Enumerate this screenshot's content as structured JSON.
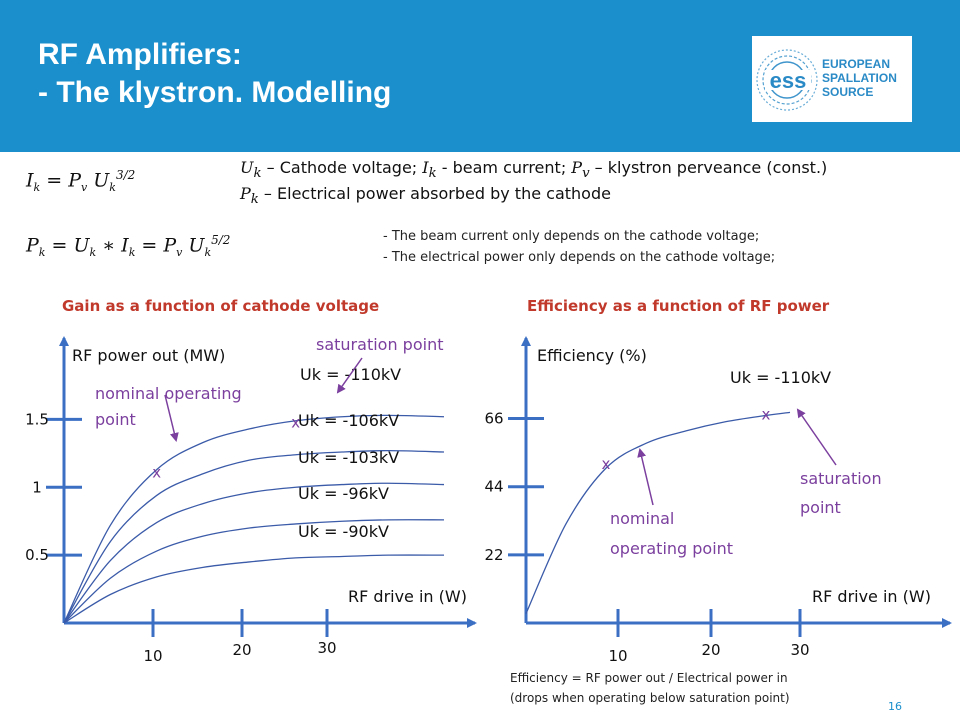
{
  "slide": {
    "title_line1": "RF Amplifiers:",
    "title_line2": "- The klystron. Modelling",
    "page_number": "16",
    "logo": {
      "line1": "EUROPEAN",
      "line2": "SPALLATION",
      "line3": "SOURCE",
      "mark": "ess"
    },
    "formula1": {
      "lhs": "I",
      "lhs_sub": "k",
      "rhs": "= P",
      "rhs_sub": "v",
      "u": " U",
      "u_sub": "k",
      "exp": "3/2"
    },
    "formula2": {
      "text": "P",
      "sub": "k",
      "mid": " = U",
      "mid_sub": "k",
      "star": " ∗ I",
      "star_sub": "k",
      "eq": " = P",
      "eq_sub": "v",
      "u": " U",
      "u_sub": "k",
      "exp": "5/2"
    },
    "desc_line1": {
      "v1": "U",
      "v1_sub": "k",
      "t1": " – Cathode voltage; ",
      "v2": "I",
      "v2_sub": "k",
      "t2": " - beam current; ",
      "v3": "P",
      "v3_sub": "v",
      "t3": " – klystron perveance (const.)"
    },
    "desc_line2": {
      "v1": "P",
      "v1_sub": "k",
      "t1": " – Electrical power absorbed by the cathode"
    },
    "bullets": [
      "-   The beam current only depends on the cathode voltage;",
      "-   The electrical power only depends on the cathode voltage;"
    ],
    "footnote": [
      "Efficiency = RF power out / Electrical power in",
      "(drops when operating below saturation point)"
    ],
    "colors": {
      "header": "#1a8fcc",
      "section_title": "#c0392b",
      "axis": "#3b6fc4",
      "curve": "#3b5ba9",
      "annotation": "#7b3f9e"
    }
  },
  "chart_data": [
    {
      "type": "line",
      "title": "Gain as a function of cathode voltage",
      "xlabel": "RF drive in (W)",
      "ylabel": "RF power out (MW)",
      "x_ticks": [
        "10",
        "20",
        "30"
      ],
      "y_ticks": [
        "0.5",
        "1",
        "1.5"
      ],
      "x_tick_values": [
        10,
        20,
        30
      ],
      "y_tick_values": [
        0.5,
        1,
        1.5
      ],
      "xlim": [
        0,
        45
      ],
      "ylim": [
        0,
        2.1
      ],
      "series": [
        {
          "name": "Uk = -110kV",
          "x": [
            0,
            5,
            10,
            15,
            20,
            25,
            30,
            35,
            41
          ],
          "y": [
            0,
            0.72,
            1.13,
            1.33,
            1.43,
            1.49,
            1.52,
            1.53,
            1.52
          ]
        },
        {
          "name": "Uk = -106kV",
          "x": [
            0,
            5,
            10,
            15,
            20,
            25,
            30,
            35,
            41
          ],
          "y": [
            0,
            0.6,
            0.94,
            1.1,
            1.2,
            1.24,
            1.26,
            1.27,
            1.26
          ]
        },
        {
          "name": "Uk = -103kV",
          "x": [
            0,
            5,
            10,
            15,
            20,
            25,
            30,
            35,
            41
          ],
          "y": [
            0,
            0.46,
            0.74,
            0.88,
            0.96,
            1.0,
            1.02,
            1.03,
            1.02
          ]
        },
        {
          "name": "Uk = -96kV",
          "x": [
            0,
            5,
            10,
            15,
            20,
            25,
            30,
            35,
            41
          ],
          "y": [
            0,
            0.33,
            0.53,
            0.64,
            0.7,
            0.73,
            0.75,
            0.76,
            0.76
          ]
        },
        {
          "name": "Uk = -90kV",
          "x": [
            0,
            5,
            10,
            15,
            20,
            25,
            30,
            35,
            41
          ],
          "y": [
            0,
            0.21,
            0.34,
            0.41,
            0.45,
            0.48,
            0.49,
            0.5,
            0.5
          ]
        }
      ],
      "series_labels": [
        "Uk = -110kV",
        "Uk = -106kV",
        "Uk = -103kV",
        "Uk = -96kV",
        "Uk = -90kV"
      ],
      "markers": [
        {
          "symbol": "x",
          "x": 10,
          "y": 1.1
        },
        {
          "symbol": "x",
          "x": 25,
          "y": 1.47
        }
      ],
      "annotations": [
        {
          "text_line1": "nominal operating",
          "text_line2": "point"
        },
        {
          "text_line1": "saturation point",
          "text_line2": ""
        }
      ],
      "grid": false
    },
    {
      "type": "line",
      "title": "Efficiency as a function of RF power",
      "xlabel": "RF drive in (W)",
      "ylabel": "Efficiency (%)",
      "x_ticks": [
        "10",
        "20",
        "30"
      ],
      "y_ticks": [
        "22",
        "44",
        "66"
      ],
      "x_tick_values": [
        10,
        20,
        30
      ],
      "y_tick_values": [
        22,
        44,
        66
      ],
      "xlim": [
        0,
        45
      ],
      "ylim": [
        0,
        92
      ],
      "series": [
        {
          "name": "Uk = -110kV",
          "x": [
            0,
            5,
            10,
            15,
            20,
            25,
            30,
            33
          ],
          "y": [
            3,
            32,
            50,
            58,
            62,
            65,
            67,
            68
          ]
        }
      ],
      "series_labels": [
        "Uk = -110kV"
      ],
      "markers": [
        {
          "symbol": "x",
          "x": 10,
          "y": 51
        },
        {
          "symbol": "x",
          "x": 30,
          "y": 67
        }
      ],
      "annotations": [
        {
          "text_line1": "nominal",
          "text_line2": "operating point"
        },
        {
          "text_line1": "saturation",
          "text_line2": "point"
        }
      ],
      "grid": false
    }
  ]
}
